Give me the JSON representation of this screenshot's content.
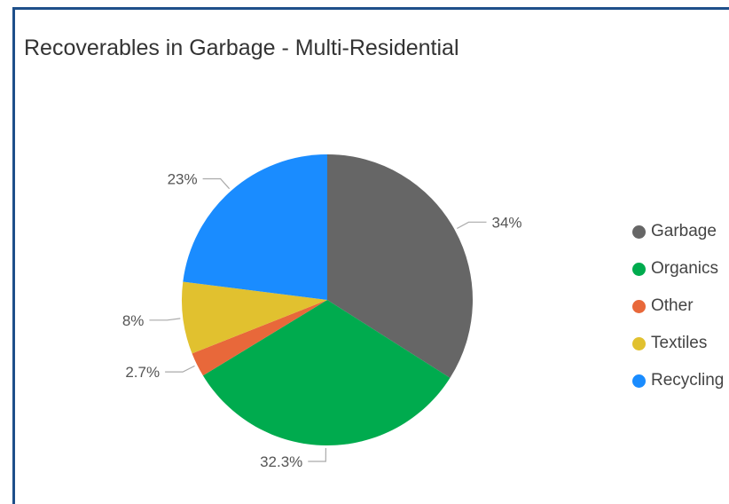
{
  "title": "Recoverables in Garbage - Multi-Residential",
  "chart_data": {
    "type": "pie",
    "title": "Recoverables in Garbage - Multi-Residential",
    "slices": [
      {
        "name": "Garbage",
        "value": 34,
        "label": "34%",
        "color": "#666666"
      },
      {
        "name": "Organics",
        "value": 32.3,
        "label": "32.3%",
        "color": "#00ab4e"
      },
      {
        "name": "Other",
        "value": 2.7,
        "label": "2.7%",
        "color": "#e8683a"
      },
      {
        "name": "Textiles",
        "value": 8,
        "label": "8%",
        "color": "#e1c12f"
      },
      {
        "name": "Recycling",
        "value": 23,
        "label": "23%",
        "color": "#1a8cff"
      }
    ],
    "legend_position": "right"
  }
}
